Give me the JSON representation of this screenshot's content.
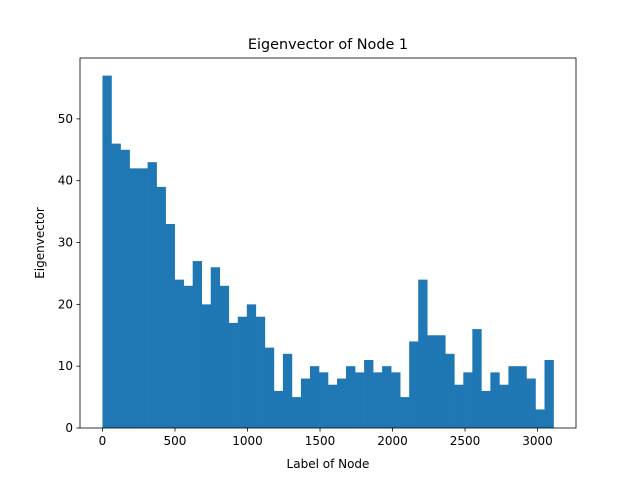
{
  "chart_data": {
    "type": "bar",
    "title": "Eigenvector of Node 1",
    "xlabel": "Label of Node",
    "ylabel": "Eigenvector",
    "bar_color": "#1f77b4",
    "bin_start": 0,
    "bin_width": 62.2,
    "values": [
      57,
      46,
      45,
      42,
      42,
      43,
      39,
      33,
      24,
      23,
      27,
      20,
      26,
      23,
      17,
      18,
      20,
      18,
      13,
      6,
      12,
      5,
      8,
      10,
      9,
      7,
      8,
      10,
      9,
      11,
      9,
      10,
      9,
      5,
      14,
      24,
      15,
      15,
      12,
      7,
      9,
      16,
      6,
      9,
      7,
      10,
      10,
      8,
      3,
      11
    ],
    "xlim": [
      -155,
      3265
    ],
    "ylim": [
      0,
      59.85
    ],
    "xticks": [
      0,
      500,
      1000,
      1500,
      2000,
      2500,
      3000
    ],
    "yticks": [
      0,
      10,
      20,
      30,
      40,
      50
    ],
    "grid": false
  }
}
